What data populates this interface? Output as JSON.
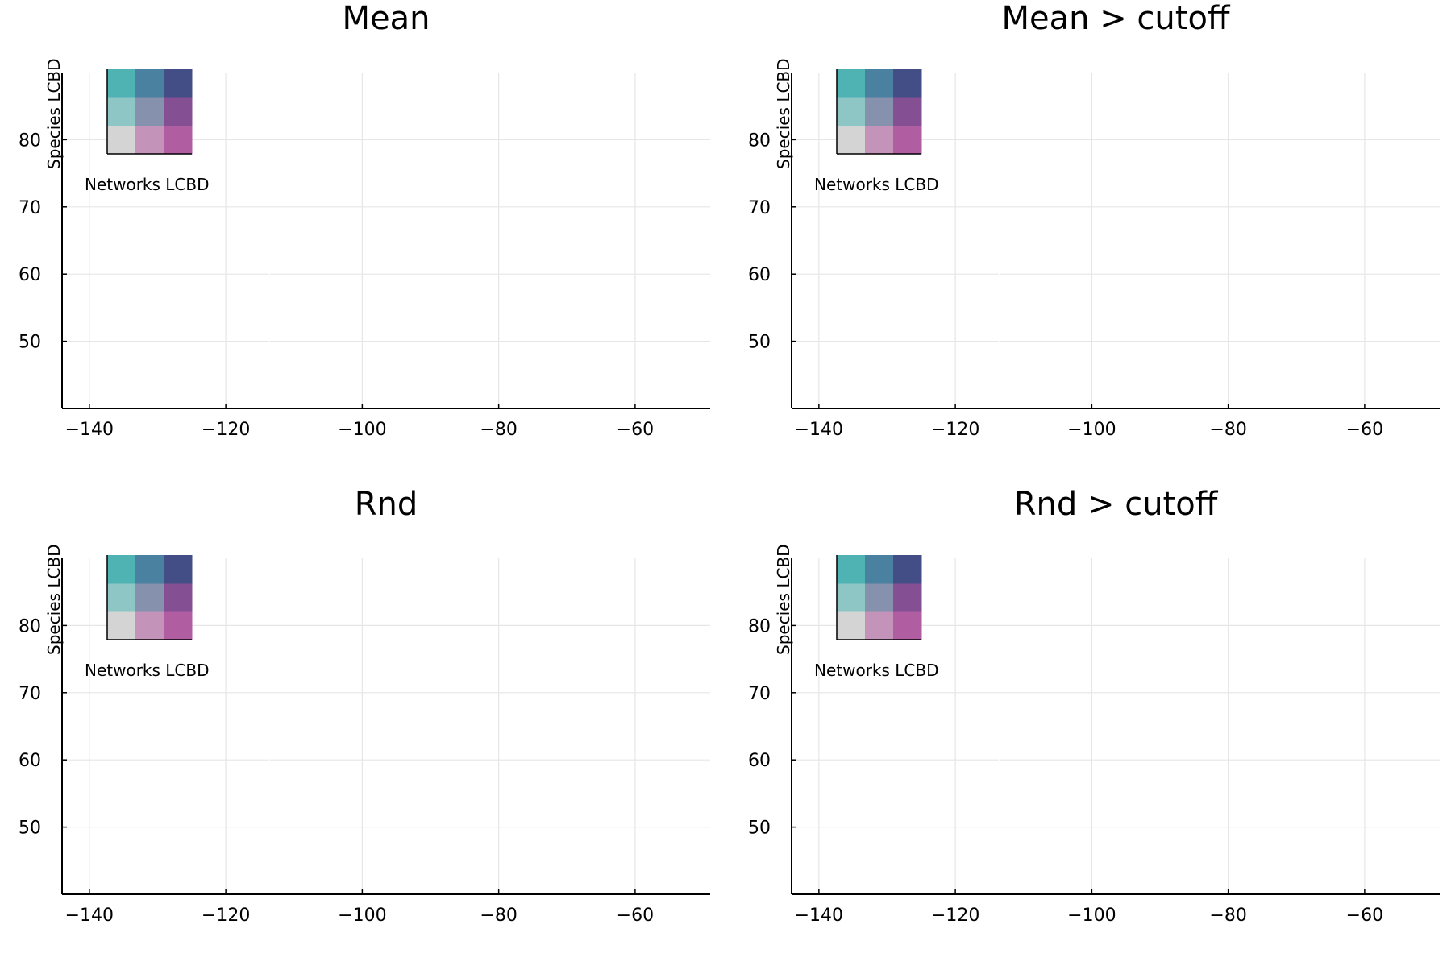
{
  "panels": [
    {
      "id": "mean",
      "title": "Mean",
      "style": "full"
    },
    {
      "id": "mean-cutoff",
      "title": "Mean > cutoff",
      "style": "full"
    },
    {
      "id": "rnd",
      "title": "Rnd",
      "style": "full"
    },
    {
      "id": "rnd-cutoff",
      "title": "Rnd > cutoff",
      "style": "binary"
    }
  ],
  "axes": {
    "x_ticks": [
      -140,
      -120,
      -100,
      -80,
      -60
    ],
    "x_tick_labels": [
      "−140",
      "−120",
      "−100",
      "−80",
      "−60"
    ],
    "y_ticks": [
      50,
      60,
      70,
      80
    ],
    "y_tick_labels": [
      "50",
      "60",
      "70",
      "80"
    ],
    "xlim": [
      -144,
      -49
    ],
    "ylim": [
      40,
      90
    ],
    "grid": true
  },
  "legend": {
    "x_label": "Networks LCBD",
    "y_label": "Species LCBD",
    "bivariate_palette": [
      [
        "#d4d4d4",
        "#c493b9",
        "#b05ea1"
      ],
      [
        "#8ec5c5",
        "#8591ad",
        "#844f93"
      ],
      [
        "#4fb3b4",
        "#4a80a0",
        "#434d86"
      ]
    ]
  },
  "colors": {
    "background": "#ffffff",
    "no_data": "#ffffff"
  }
}
